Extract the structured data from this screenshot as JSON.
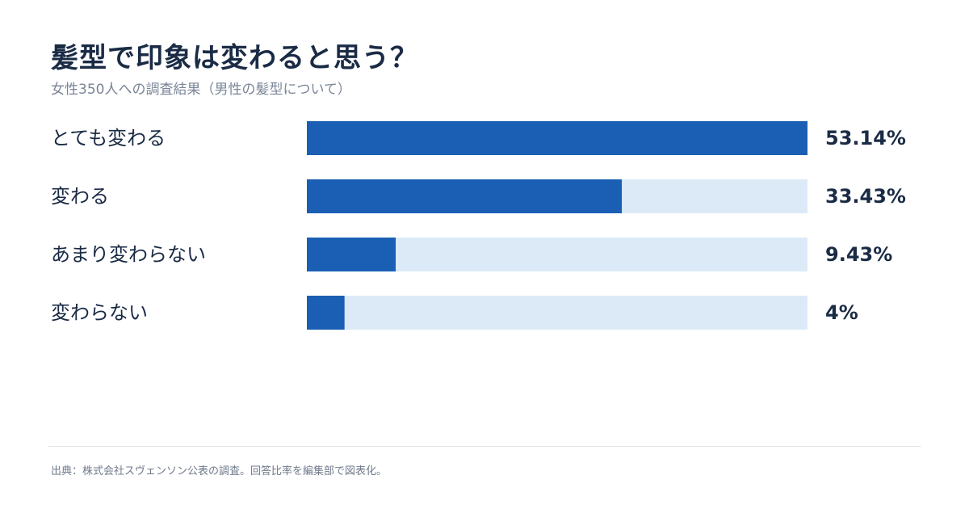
{
  "header": {
    "title": "髪型で印象は変わると思う？",
    "subtitle": "女性350人への調査結果（男性の髪型について）"
  },
  "chart_data": {
    "type": "bar",
    "orientation": "horizontal",
    "categories": [
      "とても変わる",
      "変わる",
      "あまり変わらない",
      "変わらない"
    ],
    "values": [
      53.14,
      33.43,
      9.43,
      4
    ],
    "value_labels": [
      "53.14%",
      "33.43%",
      "9.43%",
      "4%"
    ],
    "xlim": [
      0,
      53.14
    ],
    "grid": false,
    "colors": {
      "bar": "#1a5fb4",
      "track": "#dceaf8",
      "label": "#1a2b45",
      "value": "#1a2b45"
    }
  },
  "footer": {
    "source": "出典：株式会社スヴェンソン公表の調査。回答比率を編集部で図表化。"
  }
}
